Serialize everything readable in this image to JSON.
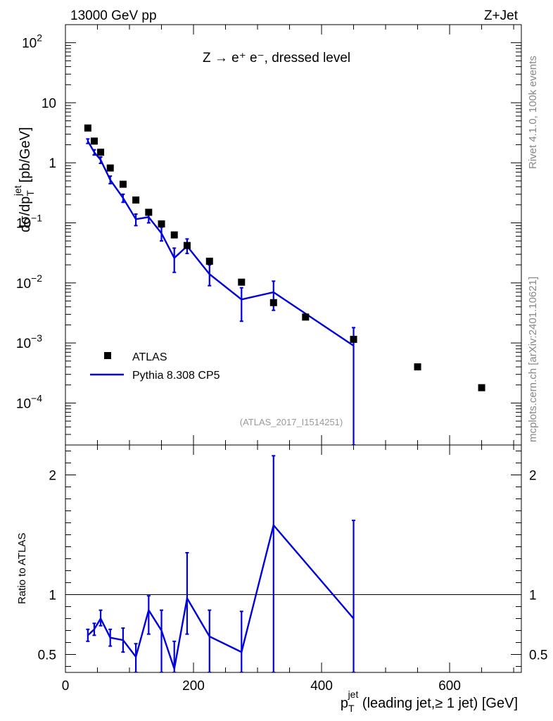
{
  "header": {
    "energy_label": "13000 GeV pp",
    "process_label": "Z+Jet",
    "decay_label": "Z → e⁺ e⁻, dressed level",
    "rivet_label": "Rivet 4.1.0,  100k events",
    "mcplots_label": "mcplots.cern.ch [arXiv:2401.10621]",
    "analysis_label": "(ATLAS_2017_I1514251)"
  },
  "colors": {
    "data": "#000000",
    "mc": "#0000dd",
    "watermark": "#999999"
  },
  "chart_data": [
    {
      "type": "scatter",
      "scale_y": "log",
      "ylabel": "dσ/dp_T^jet [pb/GeV]",
      "xlim": [
        0,
        712
      ],
      "ylim": [
        2e-05,
        200
      ],
      "y_ticks": [
        {
          "value": 100,
          "base": "10",
          "exp": "2"
        },
        {
          "value": 10,
          "base": "10",
          "exp": ""
        },
        {
          "value": 1,
          "base": "1",
          "exp": ""
        },
        {
          "value": 0.1,
          "base": "10",
          "exp": "−1"
        },
        {
          "value": 0.01,
          "base": "10",
          "exp": "−2"
        },
        {
          "value": 0.001,
          "base": "10",
          "exp": "−3"
        },
        {
          "value": 0.0001,
          "base": "10",
          "exp": "−4"
        }
      ],
      "legend_position": "left, lower",
      "series": [
        {
          "name": "ATLAS",
          "kind": "markers",
          "x": [
            35,
            45,
            55,
            70,
            90,
            110,
            130,
            150,
            170,
            190,
            225,
            275,
            325,
            375,
            450,
            550,
            650
          ],
          "y": [
            3.8,
            2.3,
            1.5,
            0.82,
            0.44,
            0.24,
            0.15,
            0.096,
            0.063,
            0.042,
            0.023,
            0.0103,
            0.0047,
            0.0027,
            0.00115,
            0.0004,
            0.00018
          ]
        },
        {
          "name": "Pythia 8.308 CP5",
          "kind": "line",
          "x": [
            35,
            45,
            55,
            70,
            90,
            110,
            130,
            150,
            170,
            190,
            225,
            275,
            325,
            450
          ],
          "y": [
            2.3,
            1.5,
            1.12,
            0.52,
            0.26,
            0.115,
            0.125,
            0.067,
            0.026,
            0.041,
            0.014,
            0.0053,
            0.007,
            0.0009
          ],
          "y_lo": [
            2.1,
            1.35,
            0.98,
            0.45,
            0.22,
            0.09,
            0.1,
            0.05,
            0.015,
            0.031,
            0.009,
            0.0023,
            0.0035,
            1e-05
          ],
          "y_hi": [
            2.5,
            1.65,
            1.25,
            0.6,
            0.3,
            0.14,
            0.15,
            0.085,
            0.038,
            0.054,
            0.02,
            0.0083,
            0.0107,
            0.0018
          ]
        }
      ]
    },
    {
      "type": "line",
      "ylabel": "Ratio to ATLAS",
      "xlabel_main": "p",
      "xlabel_sub": "T",
      "xlabel_sup": "jet",
      "xlabel_rest": " (leading jet,≥ 1 jet) [GeV]",
      "xlim": [
        0,
        712
      ],
      "ylim": [
        0.35,
        2.25
      ],
      "x_ticks": [
        0,
        200,
        400,
        600
      ],
      "y_ticks": [
        0.5,
        1,
        2
      ],
      "y_tick_labels": [
        "0.5",
        "1",
        "2"
      ],
      "reference_line": 1,
      "series": [
        {
          "name": "Pythia 8.308 CP5",
          "x": [
            35,
            45,
            55,
            70,
            90,
            110,
            130,
            150,
            170,
            190,
            225,
            275,
            325,
            450
          ],
          "y": [
            0.66,
            0.71,
            0.8,
            0.64,
            0.62,
            0.48,
            0.87,
            0.7,
            0.38,
            0.97,
            0.65,
            0.52,
            1.58,
            0.8
          ],
          "y_lo": [
            0.61,
            0.66,
            0.74,
            0.57,
            0.52,
            0.35,
            0.67,
            0.35,
            0.35,
            0.67,
            0.35,
            0.35,
            0.35,
            0.35
          ],
          "y_hi": [
            0.71,
            0.76,
            0.87,
            0.71,
            0.72,
            0.59,
            0.99,
            0.87,
            0.61,
            1.35,
            0.87,
            0.86,
            2.16,
            1.62
          ]
        }
      ]
    }
  ]
}
